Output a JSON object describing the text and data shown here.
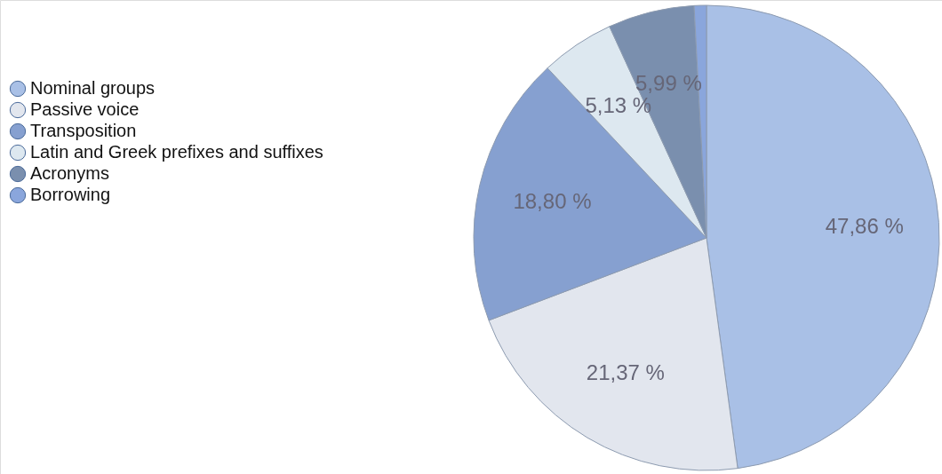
{
  "chart_data": {
    "type": "pie",
    "categories": [
      "Nominal groups",
      "Passive voice",
      "Transposition",
      "Latin and Greek prefixes and suffixes",
      "Acronyms",
      "Borrowing"
    ],
    "values": [
      47.86,
      21.37,
      18.8,
      5.13,
      5.99,
      0.85
    ],
    "value_labels": [
      "47,86 %",
      "21,37 %",
      "18,80 %",
      "5,13 %",
      "5,99 %",
      null
    ],
    "colors": [
      "#a9c0e6",
      "#e2e6ee",
      "#86a0d0",
      "#dde8f0",
      "#7a8fae",
      "#8aa6dc"
    ],
    "legend": "left"
  }
}
